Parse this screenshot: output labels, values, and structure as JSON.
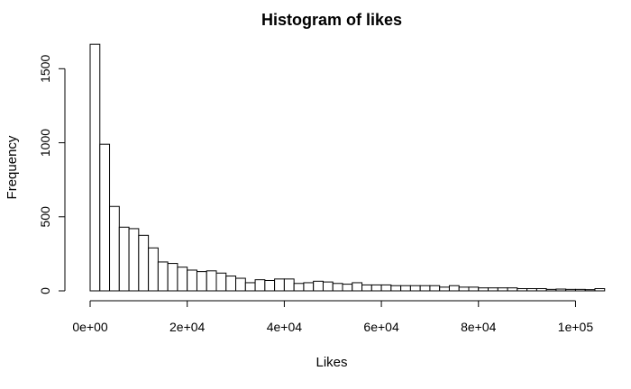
{
  "chart_data": {
    "type": "bar",
    "title": "Histogram of likes",
    "xlabel": "Likes",
    "ylabel": "Frequency",
    "bin_width": 2000,
    "x_start": 0,
    "xlim": [
      0,
      104000
    ],
    "ylim": [
      0,
      1660
    ],
    "x_ticks": [
      {
        "value": 0,
        "label": "0e+00"
      },
      {
        "value": 20000,
        "label": "2e+04"
      },
      {
        "value": 40000,
        "label": "4e+04"
      },
      {
        "value": 60000,
        "label": "6e+04"
      },
      {
        "value": 80000,
        "label": "8e+04"
      },
      {
        "value": 100000,
        "label": "1e+05"
      }
    ],
    "y_ticks": [
      {
        "value": 0,
        "label": "0"
      },
      {
        "value": 500,
        "label": "500"
      },
      {
        "value": 1000,
        "label": "1000"
      },
      {
        "value": 1500,
        "label": "1500"
      }
    ],
    "values": [
      1665,
      990,
      570,
      430,
      420,
      375,
      290,
      195,
      185,
      160,
      140,
      130,
      135,
      120,
      100,
      85,
      55,
      75,
      70,
      80,
      80,
      50,
      55,
      65,
      60,
      50,
      45,
      55,
      40,
      40,
      40,
      35,
      35,
      35,
      35,
      35,
      25,
      35,
      25,
      25,
      20,
      20,
      20,
      20,
      15,
      15,
      15,
      10,
      12,
      10,
      10,
      8,
      15
    ]
  }
}
